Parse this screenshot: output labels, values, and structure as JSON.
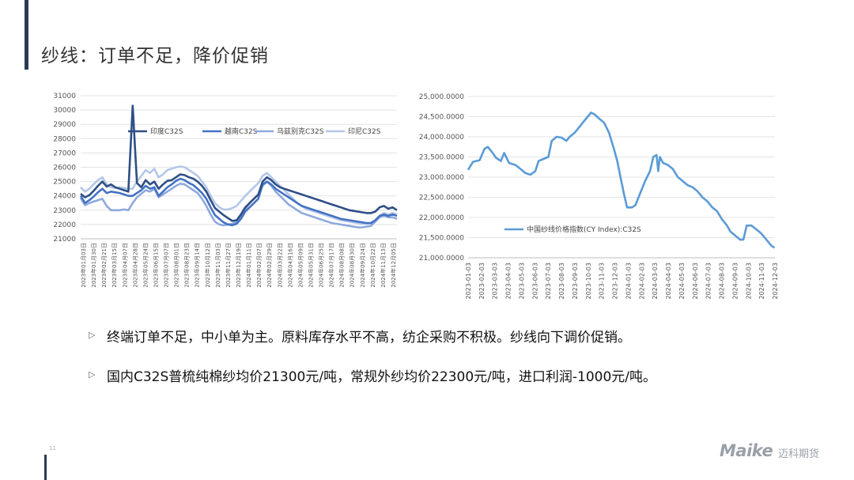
{
  "slide": {
    "title": "纱线：订单不足，降价促销",
    "page_number": "11",
    "logo": {
      "brand": "Maike",
      "cn": "迈科期货"
    }
  },
  "bullets": [
    {
      "marker": "▷",
      "text": "终端订单不足，中小单为主。原料库存水平不高，纺企采购不积极。纱线向下调价促销。"
    },
    {
      "marker": "▷",
      "text": "国内C32S普梳纯棉纱均价21300元/吨，常规外纱均价22300元/吨，进口利润-1000元/吨。"
    }
  ],
  "colors": {
    "india": "#2e4f86",
    "vietnam": "#4472c4",
    "uzbekistan": "#8ea9db",
    "indonesia": "#b4c7e7",
    "cy_index": "#5b9bd5",
    "accent": "#2b3a55"
  },
  "chart_data": [
    {
      "type": "line",
      "ylim": [
        21000,
        31000
      ],
      "yticks": [
        31000,
        30000,
        29000,
        28000,
        27000,
        26000,
        25000,
        24000,
        23000,
        22000,
        21000
      ],
      "grid": true,
      "legend_position": "top",
      "x_tick_labels": [
        "2023年01月03日",
        "2023年01月30日",
        "2023年02月21日",
        "2023年03月15日",
        "2023年04月07日",
        "2023年04月28日",
        "2023年05月24日",
        "2023年06月15日",
        "2023年07月07日",
        "2023年08月01日",
        "2023年08月23日",
        "2023年09月14日",
        "2023年10月12日",
        "2023年11月03日",
        "2023年11月27日",
        "2023年12月19日",
        "2024年01月11日",
        "2024年02月07日",
        "2024年02月29日",
        "2024年03月22日",
        "2024年04月16日",
        "2024年05月09日",
        "2024年05月31日",
        "2024年06月25日",
        "2024年07月17日",
        "2024年08月08日",
        "2024年08月30日",
        "2024年09月24日",
        "2024年10月22日",
        "2024年11月13日",
        "2024年12月05日"
      ],
      "series": [
        {
          "name": "印度C32S",
          "color_key": "india",
          "values": [
            24150,
            23900,
            24050,
            24350,
            24700,
            25000,
            24650,
            24800,
            24600,
            24500,
            24400,
            24300,
            30300,
            24900,
            24600,
            25100,
            24800,
            25000,
            24500,
            24800,
            25050,
            25100,
            25300,
            25500,
            25450,
            25300,
            25200,
            25000,
            24700,
            24300,
            23700,
            23150,
            22900,
            22650,
            22450,
            22250,
            22300,
            22700,
            23200,
            23500,
            23800,
            24100,
            25000,
            25300,
            25100,
            24800,
            24600,
            24500,
            24400,
            24300,
            24200,
            24100,
            24000,
            23900,
            23800,
            23700,
            23600,
            23500,
            23400,
            23300,
            23200,
            23100,
            23000,
            22950,
            22900,
            22850,
            22800,
            22800,
            22900,
            23200,
            23300,
            23100,
            23200,
            23000
          ]
        },
        {
          "name": "越南C32S",
          "color_key": "vietnam",
          "values": [
            24000,
            23500,
            23700,
            23950,
            24250,
            24500,
            24200,
            24300,
            24250,
            24200,
            24100,
            24000,
            24000,
            24200,
            24400,
            24700,
            24500,
            24600,
            24000,
            24300,
            24600,
            24800,
            25050,
            25200,
            25100,
            24900,
            24750,
            24500,
            24200,
            23800,
            23200,
            22650,
            22400,
            22150,
            22000,
            21950,
            22050,
            22400,
            22900,
            23200,
            23500,
            23800,
            24800,
            25000,
            24800,
            24500,
            24300,
            24100,
            23900,
            23700,
            23500,
            23300,
            23200,
            23100,
            23000,
            22900,
            22800,
            22700,
            22600,
            22500,
            22400,
            22350,
            22300,
            22250,
            22200,
            22150,
            22100,
            22100,
            22300,
            22600,
            22700,
            22600,
            22700,
            22600
          ]
        },
        {
          "name": "乌兹别克C32S",
          "color_key": "uzbekistan",
          "values": [
            23850,
            23350,
            23500,
            23600,
            23700,
            23800,
            23300,
            23000,
            23000,
            23000,
            23050,
            23000,
            23500,
            23900,
            24150,
            24400,
            24300,
            24500,
            23900,
            24100,
            24300,
            24500,
            24700,
            24850,
            24800,
            24600,
            24400,
            24200,
            23800,
            23300,
            22700,
            22200,
            22000,
            21950,
            22000,
            22050,
            22200,
            22600,
            23100,
            23500,
            23800,
            24100,
            24700,
            25000,
            24700,
            24300,
            24000,
            23700,
            23400,
            23200,
            23000,
            22800,
            22700,
            22600,
            22500,
            22400,
            22300,
            22200,
            22100,
            22050,
            22000,
            21950,
            21900,
            21850,
            21800,
            21800,
            21850,
            21900,
            22200,
            22500,
            22600,
            22500,
            22500,
            22400
          ]
        },
        {
          "name": "印尼C32S",
          "color_key": "indonesia",
          "values": [
            24600,
            24300,
            24500,
            24800,
            25100,
            25300,
            24800,
            24600,
            24550,
            24600,
            24550,
            24500,
            24500,
            25000,
            25400,
            25800,
            25600,
            25900,
            25300,
            25500,
            25800,
            25900,
            26000,
            26050,
            26000,
            25800,
            25600,
            25400,
            25000,
            24600,
            24000,
            23500,
            23200,
            23050,
            23050,
            23150,
            23300,
            23650,
            24000,
            24300,
            24600,
            24900,
            25400,
            25600,
            25300,
            25000,
            24700,
            24400,
            24100,
            23800,
            23500,
            23300,
            23100,
            23000,
            22900,
            22800,
            22700,
            22600,
            22500,
            22400,
            22300,
            22250,
            22200,
            22150,
            22100,
            22050,
            22050,
            22100,
            22300,
            22600,
            22800,
            22700,
            22800,
            22700
          ]
        }
      ]
    },
    {
      "type": "line",
      "ylim": [
        21000,
        25000
      ],
      "yticks": [
        "25,000.0000",
        "24,500.0000",
        "24,000.0000",
        "23,500.0000",
        "23,000.0000",
        "22,500.0000",
        "22,000.0000",
        "21,500.0000",
        "21,000.0000"
      ],
      "grid": true,
      "legend_position": "lower-left",
      "x_tick_labels": [
        "2023-01-03",
        "2023-02-03",
        "2023-03-03",
        "2023-04-03",
        "2023-05-03",
        "2023-06-03",
        "2023-07-03",
        "2023-08-03",
        "2023-09-03",
        "2023-10-03",
        "2023-11-03",
        "2023-12-03",
        "2024-01-03",
        "2024-02-03",
        "2024-03-03",
        "2024-04-03",
        "2024-05-03",
        "2024-06-03",
        "2024-07-03",
        "2024-08-03",
        "2024-09-03",
        "2024-10-03",
        "2024-11-03",
        "2024-12-03"
      ],
      "series": [
        {
          "name": "中国纱线价格指数(CY Index):C32S",
          "color_key": "cy_index",
          "points": [
            [
              0,
              23180
            ],
            [
              0.15,
              23380
            ],
            [
              0.35,
              23420
            ],
            [
              0.5,
              23700
            ],
            [
              0.6,
              23750
            ],
            [
              0.75,
              23600
            ],
            [
              0.85,
              23480
            ],
            [
              1.0,
              23400
            ],
            [
              1.1,
              23600
            ],
            [
              1.25,
              23350
            ],
            [
              1.45,
              23300
            ],
            [
              1.6,
              23200
            ],
            [
              1.75,
              23100
            ],
            [
              1.9,
              23060
            ],
            [
              2.05,
              23150
            ],
            [
              2.15,
              23400
            ],
            [
              2.3,
              23450
            ],
            [
              2.45,
              23500
            ],
            [
              2.55,
              23900
            ],
            [
              2.7,
              24000
            ],
            [
              2.85,
              23980
            ],
            [
              3.0,
              23900
            ],
            [
              3.1,
              24000
            ],
            [
              3.25,
              24100
            ],
            [
              3.4,
              24250
            ],
            [
              3.55,
              24400
            ],
            [
              3.65,
              24500
            ],
            [
              3.75,
              24600
            ],
            [
              3.85,
              24560
            ],
            [
              4.0,
              24450
            ],
            [
              4.15,
              24350
            ],
            [
              4.3,
              24100
            ],
            [
              4.45,
              23700
            ],
            [
              4.55,
              23400
            ],
            [
              4.65,
              23000
            ],
            [
              4.75,
              22600
            ],
            [
              4.85,
              22250
            ],
            [
              5.0,
              22250
            ],
            [
              5.1,
              22300
            ],
            [
              5.25,
              22600
            ],
            [
              5.4,
              22900
            ],
            [
              5.55,
              23150
            ],
            [
              5.65,
              23500
            ],
            [
              5.75,
              23550
            ],
            [
              5.8,
              23150
            ],
            [
              5.85,
              23500
            ],
            [
              5.95,
              23350
            ],
            [
              6.1,
              23300
            ],
            [
              6.25,
              23200
            ],
            [
              6.4,
              23000
            ],
            [
              6.55,
              22900
            ],
            [
              6.7,
              22800
            ],
            [
              6.85,
              22750
            ],
            [
              7.0,
              22650
            ],
            [
              7.15,
              22500
            ],
            [
              7.3,
              22400
            ],
            [
              7.45,
              22250
            ],
            [
              7.6,
              22150
            ],
            [
              7.75,
              21950
            ],
            [
              7.9,
              21800
            ],
            [
              8.0,
              21650
            ],
            [
              8.15,
              21550
            ],
            [
              8.3,
              21450
            ],
            [
              8.4,
              21450
            ],
            [
              8.5,
              21800
            ],
            [
              8.65,
              21800
            ],
            [
              8.8,
              21700
            ],
            [
              8.95,
              21600
            ],
            [
              9.1,
              21450
            ],
            [
              9.25,
              21300
            ],
            [
              9.35,
              21250
            ]
          ]
        }
      ]
    }
  ]
}
